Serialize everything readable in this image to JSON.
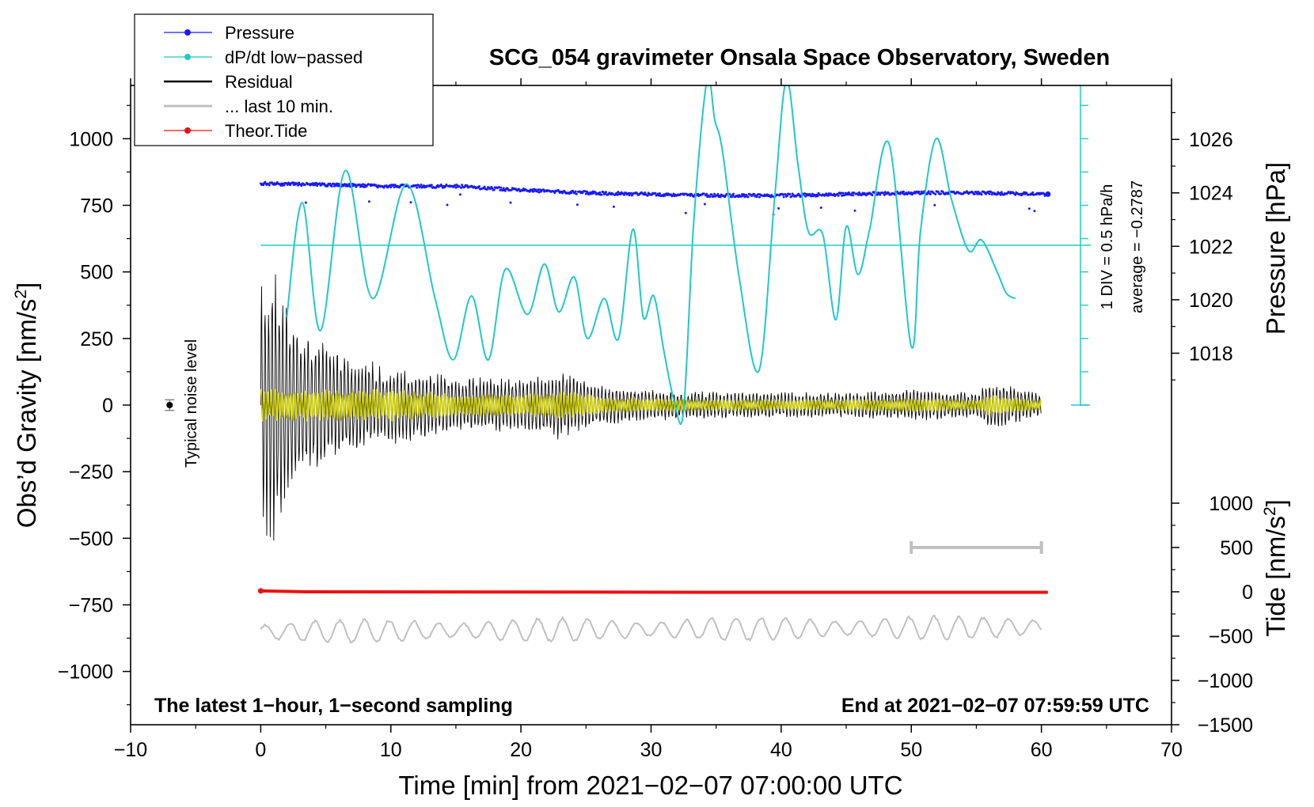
{
  "chart_data": {
    "type": "line",
    "title": "SCG_054 gravimeter Onsala Space Observatory, Sweden",
    "xlabel": "Time [min] from 2021−02−07 07:00:00 UTC",
    "ylabel_left": "Obs’d Gravity [nm/s",
    "ylabel_left_sup": "2",
    "ylabel_left_tail": "]",
    "ylabel_right_top": "Pressure [hPa]",
    "ylabel_right_bottom": "Tide [nm/s",
    "ylabel_right_bottom_sup": "2",
    "ylabel_right_bottom_tail": "]",
    "xlim": [
      -10,
      70
    ],
    "ylim_left": [
      -1200,
      1200
    ],
    "pressure_range": [
      1016,
      1027.9
    ],
    "tide_range": [
      -1500,
      1500
    ],
    "x_ticks": [
      "−10",
      "0",
      "10",
      "20",
      "30",
      "40",
      "50",
      "60",
      "70"
    ],
    "y_ticks_left": [
      "−1000",
      "−750",
      "−500",
      "−250",
      "0",
      "250",
      "500",
      "750",
      "1000"
    ],
    "y_ticks_pressure": [
      "1018",
      "1020",
      "1022",
      "1024",
      "1026"
    ],
    "y_ticks_tide": [
      "−1500",
      "−1000",
      "−500",
      "0",
      "500",
      "1000"
    ],
    "legend": [
      {
        "label": "Pressure",
        "color": "#1a1aff",
        "marker": true
      },
      {
        "label": "dP/dt low−passed",
        "color": "#20c8c8",
        "marker": true
      },
      {
        "label": "Residual",
        "color": "#000000",
        "marker": false
      },
      {
        "label": "... last 10 min.",
        "color": "#c0c0c0",
        "marker": false
      },
      {
        "label": "Theor.Tide",
        "color": "#ee1111",
        "marker": true
      }
    ],
    "noise_label": "Typical noise level",
    "noise_marker": {
      "x": -7,
      "y": 0,
      "err": 20
    },
    "dpdt_scale_note": "1 DIV = 0.5 hPa/h",
    "dpdt_average_note": "average = −0.2787",
    "dpdt_average_level": 600,
    "footer_left": "The latest 1−hour, 1−second sampling",
    "footer_right": "End at 2021−02−07 07:59:59 UTC",
    "series": [
      {
        "name": "Pressure",
        "units": "hPa",
        "x": [
          0,
          5,
          10,
          15,
          20,
          25,
          30,
          35,
          40,
          45,
          50,
          55,
          60.5
        ],
        "y": [
          1024.35,
          1024.3,
          1024.25,
          1024.25,
          1024.1,
          1024.0,
          1023.95,
          1023.9,
          1023.9,
          1023.95,
          1024.0,
          1024.0,
          1023.95
        ]
      },
      {
        "name": "dP/dt low-passed",
        "units": "nm/s2-equivalent plotted on left axis",
        "x": [
          2.0,
          3.2,
          4.6,
          6.5,
          8.6,
          11.2,
          13.4,
          14.8,
          16.2,
          17.5,
          18.8,
          20.5,
          21.8,
          22.9,
          24.1,
          25.1,
          26.4,
          27.5,
          28.6,
          29.4,
          30.2,
          31.0,
          31.8,
          32.5,
          33.3,
          34.3,
          34.9,
          35.5,
          36.8,
          38.3,
          39.5,
          40.4,
          41.3,
          42.1,
          43.2,
          44.2,
          45.0,
          45.9,
          46.8,
          48.3,
          50.0,
          50.7,
          51.9,
          53.1,
          54.4,
          55.4,
          56.6,
          57.3,
          58.0
        ],
        "y": [
          330,
          760,
          280,
          880,
          400,
          830,
          400,
          170,
          410,
          170,
          510,
          340,
          530,
          350,
          480,
          250,
          400,
          250,
          660,
          330,
          410,
          200,
          10,
          -20,
          700,
          1220,
          1070,
          950,
          470,
          130,
          780,
          1220,
          900,
          650,
          640,
          320,
          670,
          490,
          660,
          980,
          220,
          650,
          1000,
          770,
          580,
          620,
          500,
          420,
          400
        ]
      },
      {
        "name": "Residual",
        "units": "nm/s2",
        "x": [
          0,
          1,
          3,
          6,
          10,
          15,
          20,
          23,
          26,
          30,
          35,
          40,
          45,
          50,
          55,
          56,
          60
        ],
        "y": [
          450,
          550,
          300,
          200,
          150,
          110,
          100,
          140,
          80,
          60,
          50,
          50,
          50,
          60,
          50,
          100,
          40
        ]
      },
      {
        "name": "... last 10 min.",
        "units": "nm/s2 (tide axis)",
        "x": [
          0,
          60
        ],
        "y": [
          -450,
          -400
        ]
      },
      {
        "name": "Theor.Tide",
        "units": "nm/s2 (tide axis)",
        "x": [
          0,
          3.5,
          35,
          60.5
        ],
        "y": [
          10,
          0,
          -5,
          -5
        ]
      }
    ],
    "last10_span": [
      50,
      60
    ],
    "last10_level": 500
  }
}
